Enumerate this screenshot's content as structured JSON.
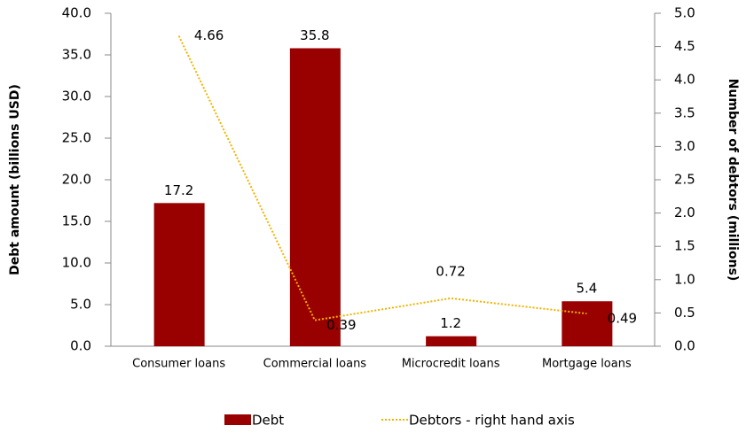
{
  "chart_data": {
    "type": "bar",
    "categories": [
      "Consumer loans",
      "Commercial loans",
      "Microcredit loans",
      "Mortgage loans"
    ],
    "series": [
      {
        "name": "Debt",
        "type": "bar",
        "color": "#990000",
        "values": [
          17.2,
          35.8,
          1.2,
          5.4
        ]
      },
      {
        "name": "Debtors - right hand axis",
        "type": "line",
        "axis": "y2",
        "color": "#f0b400",
        "values": [
          4.66,
          0.39,
          0.72,
          0.49
        ]
      }
    ],
    "y_label": "Debt amount (billions USD)",
    "y2_label": "Number of debtors (millions)",
    "ylim": [
      0,
      40
    ],
    "yticks": [
      {
        "value": 0,
        "label": "0.0"
      },
      {
        "value": 5,
        "label": "5.0"
      },
      {
        "value": 10,
        "label": "10.0"
      },
      {
        "value": 15,
        "label": "15.0"
      },
      {
        "value": 20,
        "label": "20.0"
      },
      {
        "value": 25,
        "label": "25.0"
      },
      {
        "value": 30,
        "label": "30.0"
      },
      {
        "value": 35,
        "label": "35.0"
      },
      {
        "value": 40,
        "label": "40.0"
      }
    ],
    "y2lim": [
      0,
      5
    ],
    "y2ticks": [
      {
        "value": 0,
        "label": "0.0"
      },
      {
        "value": 0.5,
        "label": "0.5"
      },
      {
        "value": 1,
        "label": "1.0"
      },
      {
        "value": 1.5,
        "label": "1.5"
      },
      {
        "value": 2,
        "label": "2.0"
      },
      {
        "value": 2.5,
        "label": "2.5"
      },
      {
        "value": 3,
        "label": "3.0"
      },
      {
        "value": 3.5,
        "label": "3.5"
      },
      {
        "value": 4,
        "label": "4.0"
      },
      {
        "value": 4.5,
        "label": "4.5"
      },
      {
        "value": 5,
        "label": "5.0"
      }
    ],
    "grid": false,
    "legend": "bottom"
  }
}
